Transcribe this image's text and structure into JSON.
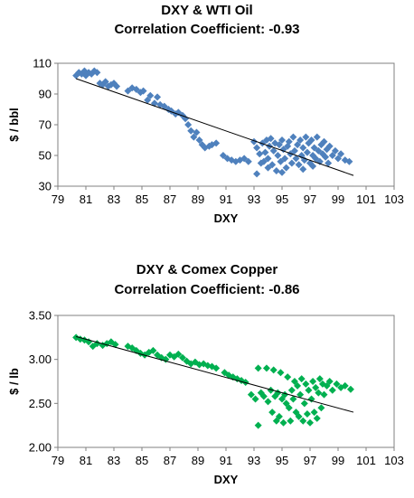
{
  "chart_data": [
    {
      "type": "scatter",
      "title": "DXY & WTI Oil",
      "subtitle": "Correlation Coefficient: -0.93",
      "xlabel": "DXY",
      "ylabel": "$ / bbl",
      "xlim": [
        79,
        103
      ],
      "ylim": [
        30,
        110
      ],
      "xticks": [
        79,
        81,
        83,
        85,
        87,
        89,
        91,
        93,
        95,
        97,
        99,
        101,
        103
      ],
      "yticks": [
        30,
        50,
        70,
        90,
        110
      ],
      "grid": false,
      "colors": {
        "marker": "#4f81bd",
        "trendline": "#000000"
      },
      "trendline": {
        "x": [
          80.3,
          100.1
        ],
        "y": [
          100,
          37
        ]
      },
      "series": [
        {
          "values": [
            [
              80.3,
              102
            ],
            [
              80.5,
              104
            ],
            [
              80.7,
              103
            ],
            [
              80.9,
              105
            ],
            [
              81.0,
              102
            ],
            [
              81.2,
              104
            ],
            [
              81.4,
              103
            ],
            [
              81.6,
              105
            ],
            [
              81.8,
              104
            ],
            [
              82.0,
              97
            ],
            [
              82.2,
              96
            ],
            [
              82.4,
              98
            ],
            [
              82.6,
              95
            ],
            [
              82.8,
              96
            ],
            [
              83.0,
              97
            ],
            [
              83.2,
              95
            ],
            [
              84.0,
              92
            ],
            [
              84.3,
              94
            ],
            [
              84.6,
              93
            ],
            [
              84.9,
              91
            ],
            [
              85.1,
              92
            ],
            [
              85.4,
              86
            ],
            [
              85.6,
              89
            ],
            [
              85.9,
              84
            ],
            [
              86.1,
              88
            ],
            [
              86.3,
              83
            ],
            [
              86.6,
              82
            ],
            [
              86.9,
              80
            ],
            [
              87.1,
              79
            ],
            [
              87.4,
              77
            ],
            [
              87.6,
              78
            ],
            [
              87.9,
              76
            ],
            [
              88.1,
              74
            ],
            [
              88.3,
              70
            ],
            [
              88.5,
              66
            ],
            [
              88.7,
              62
            ],
            [
              88.9,
              65
            ],
            [
              89.1,
              60
            ],
            [
              89.3,
              57
            ],
            [
              89.5,
              55
            ],
            [
              89.8,
              56
            ],
            [
              90.0,
              57
            ],
            [
              90.3,
              58
            ],
            [
              90.8,
              50
            ],
            [
              91.1,
              48
            ],
            [
              91.4,
              47
            ],
            [
              91.7,
              46
            ],
            [
              92.0,
              47
            ],
            [
              92.3,
              48
            ],
            [
              92.6,
              46
            ],
            [
              93.0,
              59
            ],
            [
              93.2,
              55
            ],
            [
              93.4,
              51
            ],
            [
              93.5,
              45
            ],
            [
              93.6,
              58
            ],
            [
              93.8,
              52
            ],
            [
              93.9,
              60
            ],
            [
              94.0,
              48
            ],
            [
              94.1,
              56
            ],
            [
              94.2,
              61
            ],
            [
              94.3,
              44
            ],
            [
              94.4,
              53
            ],
            [
              94.5,
              58
            ],
            [
              94.6,
              40
            ],
            [
              94.7,
              50
            ],
            [
              94.8,
              57
            ],
            [
              94.9,
              46
            ],
            [
              95.0,
              60
            ],
            [
              95.1,
              54
            ],
            [
              95.2,
              48
            ],
            [
              95.3,
              42
            ],
            [
              95.4,
              56
            ],
            [
              95.5,
              59
            ],
            [
              95.6,
              51
            ],
            [
              95.7,
              45
            ],
            [
              95.8,
              62
            ],
            [
              95.9,
              53
            ],
            [
              96.0,
              48
            ],
            [
              96.1,
              57
            ],
            [
              96.2,
              44
            ],
            [
              96.3,
              60
            ],
            [
              96.4,
              50
            ],
            [
              96.5,
              55
            ],
            [
              96.6,
              47
            ],
            [
              96.7,
              62
            ],
            [
              96.8,
              52
            ],
            [
              96.9,
              58
            ],
            [
              97.0,
              45
            ],
            [
              97.1,
              60
            ],
            [
              97.2,
              50
            ],
            [
              97.3,
              55
            ],
            [
              97.4,
              48
            ],
            [
              97.5,
              62
            ],
            [
              97.6,
              53
            ],
            [
              97.7,
              46
            ],
            [
              97.8,
              57
            ],
            [
              97.9,
              51
            ],
            [
              98.0,
              59
            ],
            [
              98.1,
              49
            ],
            [
              98.2,
              54
            ],
            [
              98.3,
              45
            ],
            [
              98.4,
              56
            ],
            [
              98.6,
              50
            ],
            [
              98.8,
              53
            ],
            [
              99.0,
              48
            ],
            [
              99.2,
              51
            ],
            [
              99.5,
              47
            ],
            [
              99.8,
              46
            ],
            [
              93.2,
              38
            ],
            [
              94.0,
              42
            ],
            [
              95.0,
              39
            ],
            [
              93.7,
              46
            ],
            [
              96.5,
              41
            ],
            [
              97.2,
              43
            ]
          ]
        }
      ]
    },
    {
      "type": "scatter",
      "title": "DXY & Comex Copper",
      "subtitle": "Correlation Coefficient: -0.86",
      "xlabel": "DXY",
      "ylabel": "$ / lb",
      "xlim": [
        79,
        103
      ],
      "ylim": [
        2.0,
        3.5
      ],
      "xticks": [
        79,
        81,
        83,
        85,
        87,
        89,
        91,
        93,
        95,
        97,
        99,
        101,
        103
      ],
      "yticks": [
        "2.00",
        "2.50",
        "3.00",
        "3.50"
      ],
      "grid": false,
      "colors": {
        "marker": "#00b050",
        "trendline": "#000000"
      },
      "trendline": {
        "x": [
          80.3,
          100.1
        ],
        "y": [
          3.26,
          2.4
        ]
      },
      "series": [
        {
          "values": [
            [
              80.3,
              3.25
            ],
            [
              80.6,
              3.23
            ],
            [
              80.9,
              3.22
            ],
            [
              81.2,
              3.2
            ],
            [
              81.5,
              3.15
            ],
            [
              81.8,
              3.18
            ],
            [
              82.2,
              3.16
            ],
            [
              82.5,
              3.18
            ],
            [
              82.8,
              3.2
            ],
            [
              83.1,
              3.17
            ],
            [
              84.0,
              3.15
            ],
            [
              84.3,
              3.13
            ],
            [
              84.6,
              3.1
            ],
            [
              84.9,
              3.07
            ],
            [
              85.2,
              3.05
            ],
            [
              85.5,
              3.08
            ],
            [
              85.8,
              3.1
            ],
            [
              86.1,
              3.05
            ],
            [
              86.4,
              3.02
            ],
            [
              86.7,
              3.0
            ],
            [
              87.0,
              3.05
            ],
            [
              87.3,
              3.03
            ],
            [
              87.6,
              3.06
            ],
            [
              87.9,
              3.02
            ],
            [
              88.2,
              2.98
            ],
            [
              88.5,
              2.95
            ],
            [
              88.8,
              2.97
            ],
            [
              89.1,
              2.94
            ],
            [
              89.4,
              2.95
            ],
            [
              89.7,
              2.93
            ],
            [
              90.0,
              2.92
            ],
            [
              90.3,
              2.9
            ],
            [
              90.9,
              2.85
            ],
            [
              91.2,
              2.82
            ],
            [
              91.5,
              2.8
            ],
            [
              91.8,
              2.78
            ],
            [
              92.1,
              2.76
            ],
            [
              92.4,
              2.74
            ],
            [
              92.8,
              2.6
            ],
            [
              93.1,
              2.55
            ],
            [
              93.3,
              2.9
            ],
            [
              93.3,
              2.25
            ],
            [
              93.5,
              2.62
            ],
            [
              93.7,
              2.58
            ],
            [
              93.9,
              2.9
            ],
            [
              94.0,
              2.52
            ],
            [
              94.2,
              2.65
            ],
            [
              94.3,
              2.4
            ],
            [
              94.4,
              2.88
            ],
            [
              94.5,
              2.58
            ],
            [
              94.6,
              2.3
            ],
            [
              94.7,
              2.62
            ],
            [
              94.8,
              2.35
            ],
            [
              94.9,
              2.85
            ],
            [
              95.0,
              2.55
            ],
            [
              95.1,
              2.28
            ],
            [
              95.2,
              2.6
            ],
            [
              95.3,
              2.5
            ],
            [
              95.4,
              2.8
            ],
            [
              95.5,
              2.45
            ],
            [
              95.6,
              2.3
            ],
            [
              95.7,
              2.65
            ],
            [
              95.8,
              2.55
            ],
            [
              95.9,
              2.75
            ],
            [
              96.0,
              2.4
            ],
            [
              96.1,
              2.7
            ],
            [
              96.2,
              2.35
            ],
            [
              96.3,
              2.6
            ],
            [
              96.4,
              2.78
            ],
            [
              96.5,
              2.3
            ],
            [
              96.6,
              2.5
            ],
            [
              96.7,
              2.72
            ],
            [
              96.8,
              2.38
            ],
            [
              96.9,
              2.65
            ],
            [
              97.0,
              2.28
            ],
            [
              97.1,
              2.55
            ],
            [
              97.2,
              2.75
            ],
            [
              97.3,
              2.4
            ],
            [
              97.4,
              2.68
            ],
            [
              97.5,
              2.33
            ],
            [
              97.6,
              2.62
            ],
            [
              97.7,
              2.78
            ],
            [
              97.8,
              2.45
            ],
            [
              97.9,
              2.72
            ],
            [
              98.0,
              2.6
            ],
            [
              98.2,
              2.7
            ],
            [
              98.4,
              2.75
            ],
            [
              98.6,
              2.65
            ],
            [
              98.9,
              2.72
            ],
            [
              99.2,
              2.68
            ],
            [
              99.5,
              2.7
            ],
            [
              99.9,
              2.66
            ]
          ]
        }
      ]
    }
  ]
}
